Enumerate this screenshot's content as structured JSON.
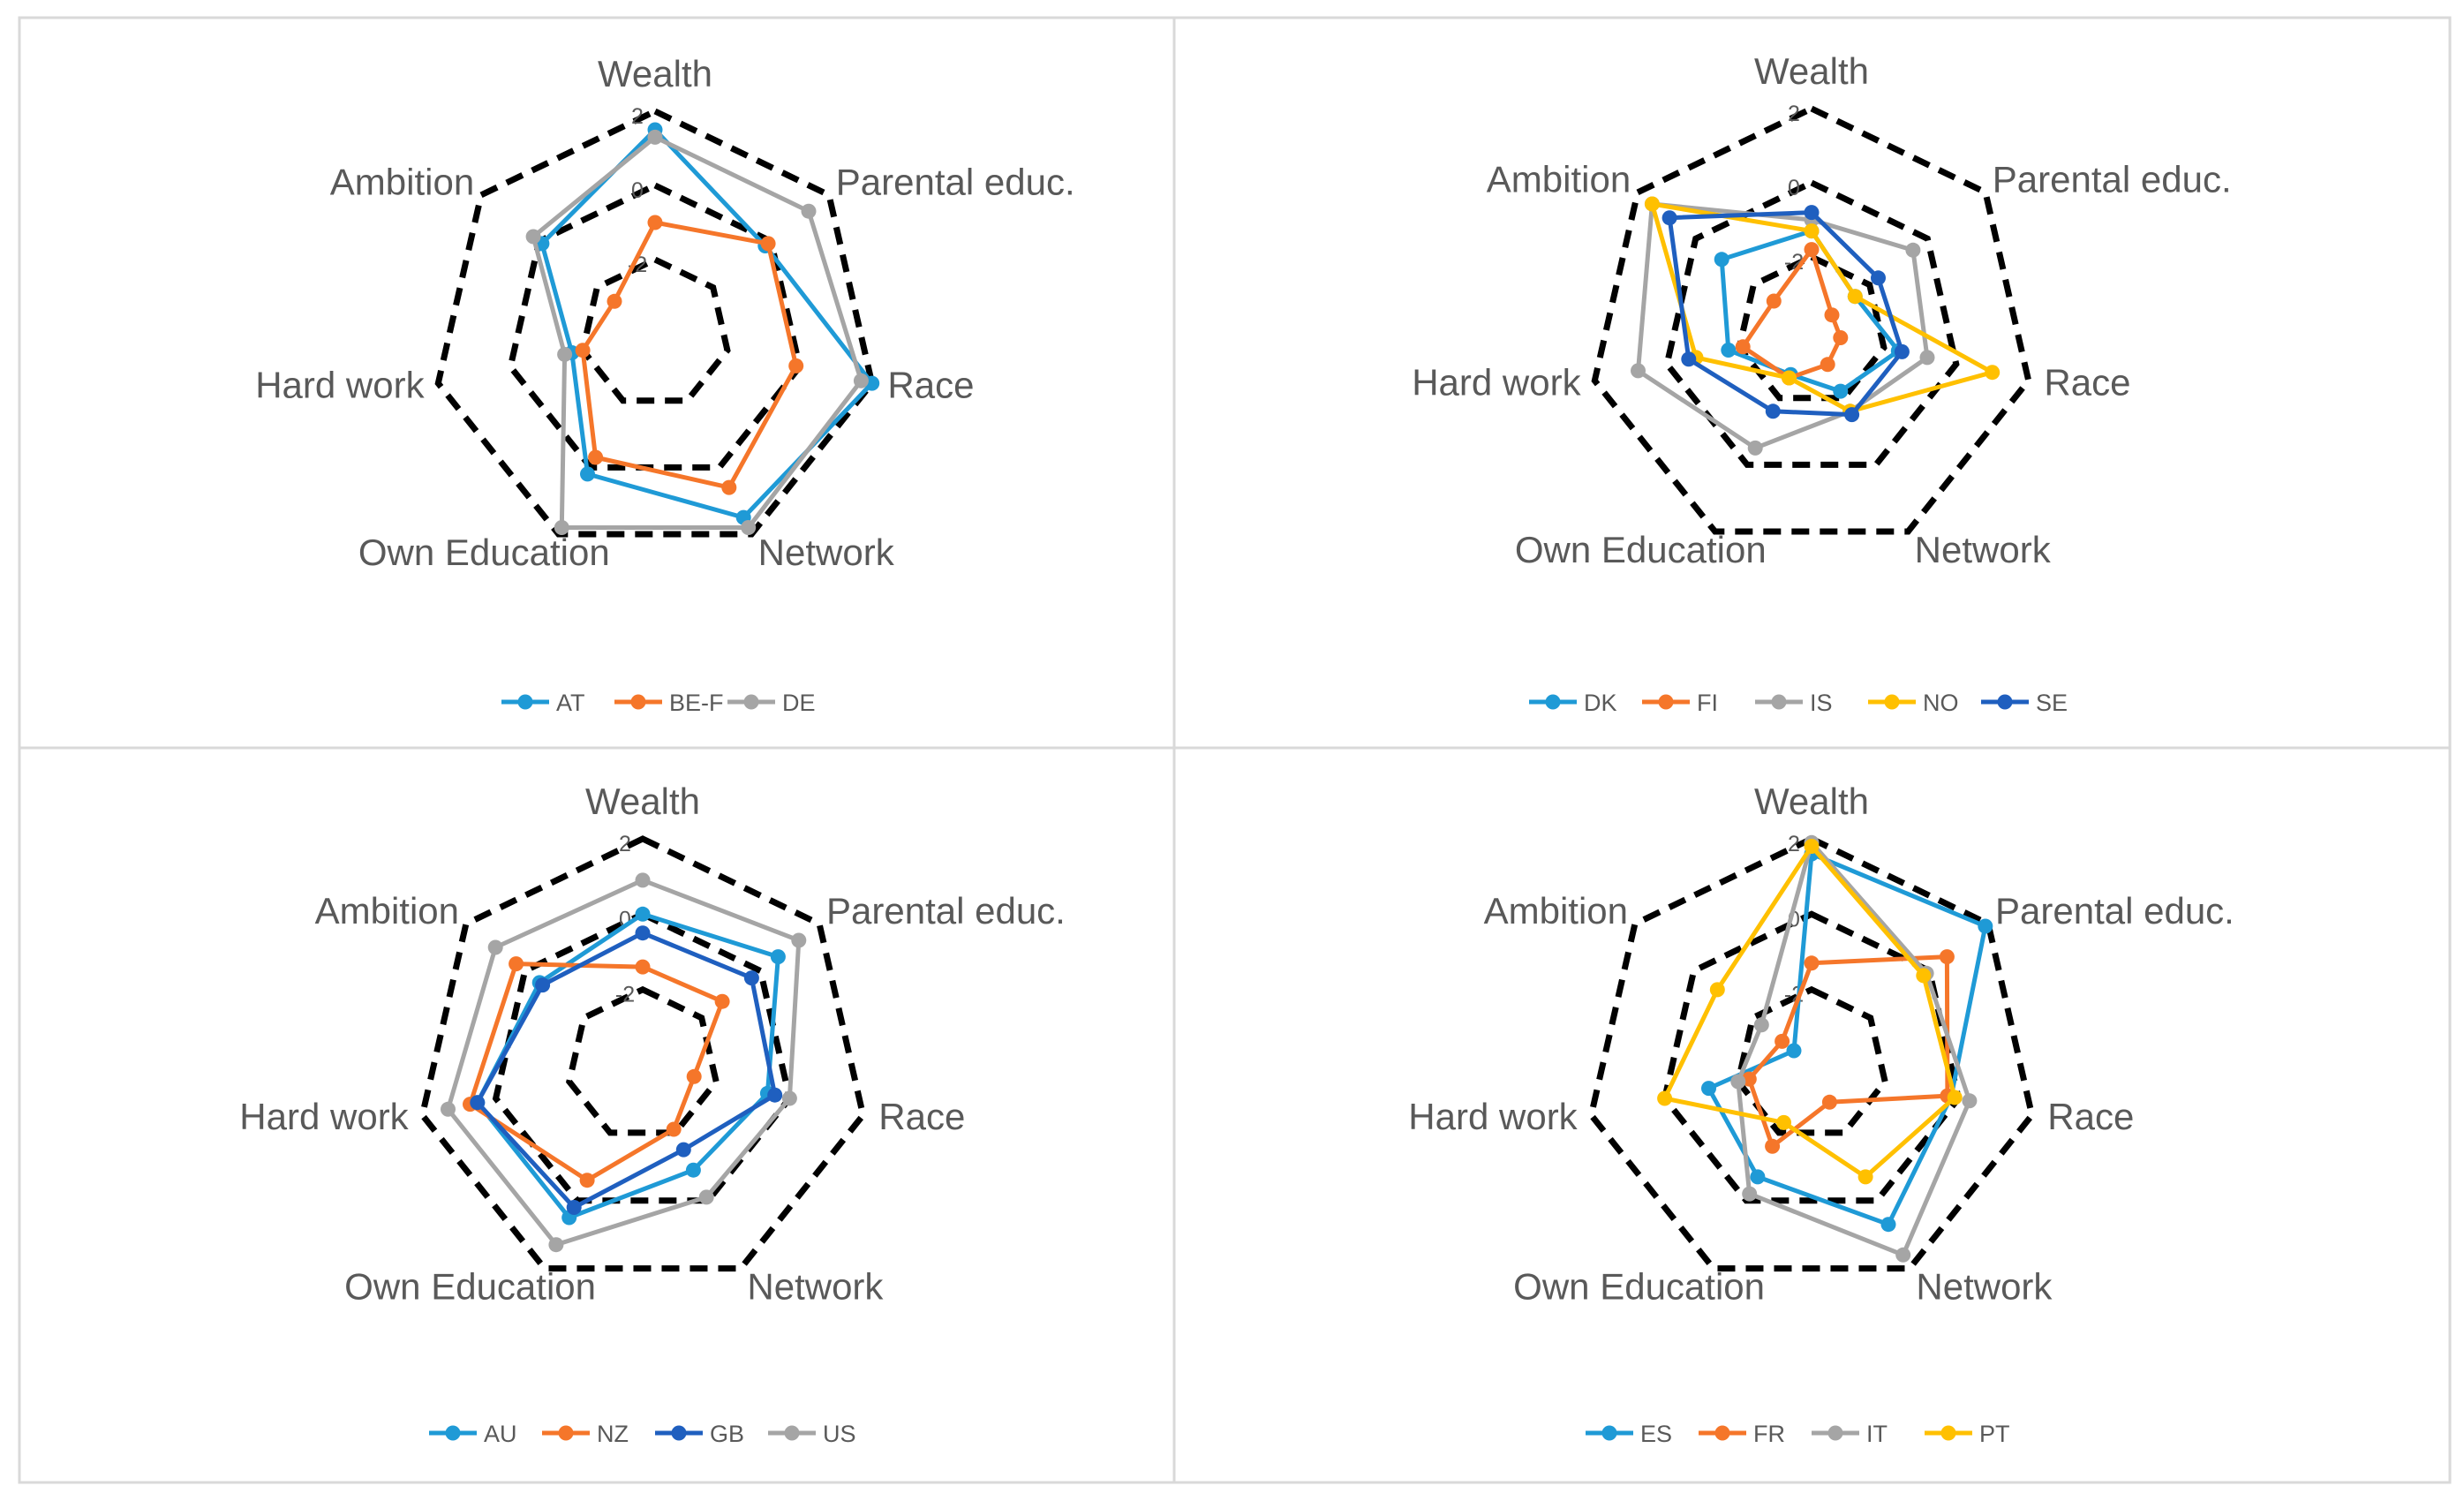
{
  "colors": {
    "blue": "#1f9ad6",
    "orange": "#f5762a",
    "gray": "#a5a5a5",
    "gold": "#ffc000",
    "darkblue": "#1f5fbf",
    "frame": "#000000",
    "border": "#d9d9d9",
    "text": "#595959"
  },
  "chart_data": [
    {
      "type": "radar",
      "axes": [
        "Wealth",
        "Parental educ.",
        "Race",
        "Network",
        "Own Education",
        "Hard work",
        "Ambition"
      ],
      "range": [
        -4,
        2
      ],
      "frame_values": [
        2,
        0,
        -2
      ],
      "tick_labels": [
        "2",
        "0",
        "-2"
      ],
      "series": [
        {
          "name": "AT",
          "color": "#1f9ad6",
          "values": [
            1.5,
            -0.2,
            2.0,
            1.5,
            0.2,
            -1.7,
            -0.1
          ]
        },
        {
          "name": "BE-F",
          "color": "#f5762a",
          "values": [
            -1.0,
            -0.1,
            -0.1,
            0.6,
            -0.3,
            -2.0,
            -2.6
          ]
        },
        {
          "name": "DE",
          "color": "#a5a5a5",
          "values": [
            1.3,
            1.3,
            1.7,
            1.8,
            1.8,
            -1.5,
            0.2
          ]
        }
      ]
    },
    {
      "type": "radar",
      "axes": [
        "Wealth",
        "Parental educ.",
        "Race",
        "Network",
        "Own Education",
        "Hard work",
        "Ambition"
      ],
      "range": [
        -4,
        2
      ],
      "frame_values": [
        2,
        0,
        -2
      ],
      "tick_labels": [
        "2",
        "0",
        "-2"
      ],
      "series": [
        {
          "name": "DK",
          "color": "#1f9ad6",
          "values": [
            -1.3,
            -2.5,
            -1.6,
            -2.2,
            -2.7,
            -1.7,
            -0.9
          ]
        },
        {
          "name": "FI",
          "color": "#f5762a",
          "values": [
            -1.8,
            -3.3,
            -3.2,
            -3.0,
            -2.6,
            -2.1,
            -2.7
          ]
        },
        {
          "name": "IS",
          "color": "#a5a5a5",
          "values": [
            -1.0,
            -0.5,
            -0.8,
            -1.6,
            -0.5,
            0.8,
            1.5
          ]
        },
        {
          "name": "NO",
          "color": "#ffc000",
          "values": [
            -1.3,
            -2.5,
            1.0,
            -1.6,
            -2.6,
            -0.8,
            1.5
          ]
        },
        {
          "name": "SE",
          "color": "#1f5fbf",
          "values": [
            -0.8,
            -1.7,
            -1.5,
            -1.5,
            -1.6,
            -0.6,
            0.9
          ]
        }
      ]
    },
    {
      "type": "radar",
      "axes": [
        "Wealth",
        "Parental educ.",
        "Race",
        "Network",
        "Own Education",
        "Hard work",
        "Ambition"
      ],
      "range": [
        -4,
        2
      ],
      "frame_values": [
        2,
        0,
        -2
      ],
      "tick_labels": [
        "2",
        "0",
        "-2"
      ],
      "series": [
        {
          "name": "AU",
          "color": "#1f9ad6",
          "values": [
            0.0,
            0.6,
            -0.6,
            -0.9,
            0.5,
            0.5,
            -0.5
          ]
        },
        {
          "name": "NZ",
          "color": "#f5762a",
          "values": [
            -1.4,
            -1.3,
            -2.6,
            -2.1,
            -0.6,
            0.7,
            0.3
          ]
        },
        {
          "name": "GB",
          "color": "#1f5fbf",
          "values": [
            -0.5,
            -0.3,
            -0.4,
            -1.5,
            0.2,
            0.5,
            -0.6
          ]
        },
        {
          "name": "US",
          "color": "#a5a5a5",
          "values": [
            0.9,
            1.3,
            0.0,
            -0.1,
            1.3,
            1.3,
            1.0
          ]
        }
      ]
    },
    {
      "type": "radar",
      "axes": [
        "Wealth",
        "Parental educ.",
        "Race",
        "Network",
        "Own Education",
        "Hard work",
        "Ambition"
      ],
      "range": [
        -4,
        2
      ],
      "frame_values": [
        2,
        0,
        -2
      ],
      "tick_labels": [
        "2",
        "0",
        "-2"
      ],
      "series": [
        {
          "name": "ES",
          "color": "#1f9ad6",
          "values": [
            1.6,
            1.9,
            -0.2,
            0.7,
            -0.7,
            -1.2,
            -3.4
          ]
        },
        {
          "name": "FR",
          "color": "#f5762a",
          "values": [
            -1.3,
            0.6,
            -0.3,
            -2.9,
            -1.6,
            -2.3,
            -3.0
          ]
        },
        {
          "name": "IT",
          "color": "#a5a5a5",
          "values": [
            1.9,
            -0.1,
            0.3,
            1.6,
            -0.2,
            -2.0,
            -2.3
          ]
        },
        {
          "name": "PT",
          "color": "#ffc000",
          "values": [
            1.8,
            -0.2,
            -0.1,
            -0.7,
            -2.3,
            0.0,
            -0.8
          ]
        }
      ]
    }
  ]
}
